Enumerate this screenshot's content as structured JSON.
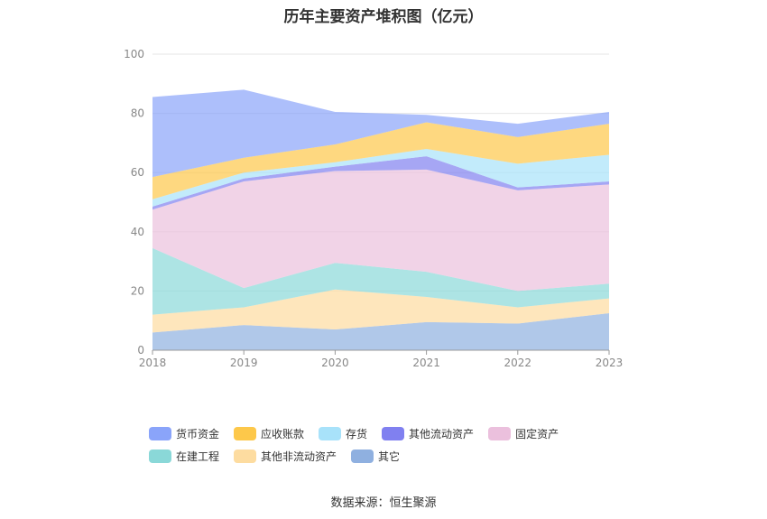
{
  "title": "历年主要资产堆积图（亿元）",
  "source": "数据来源：恒生聚源",
  "chart_data": {
    "type": "area",
    "stacked": true,
    "x": [
      "2018",
      "2019",
      "2020",
      "2021",
      "2022",
      "2023"
    ],
    "ylim": [
      0,
      100
    ],
    "yticks": [
      0,
      20,
      40,
      60,
      80,
      100
    ],
    "grid": true,
    "legend_position": "bottom",
    "series": [
      {
        "name": "其它",
        "color": "#8fb0e0",
        "values": [
          6,
          8.5,
          7,
          9.5,
          9,
          12.5
        ]
      },
      {
        "name": "其他非流动资产",
        "color": "#fddca0",
        "values": [
          6,
          6,
          13.5,
          8.5,
          5.5,
          5
        ]
      },
      {
        "name": "在建工程",
        "color": "#8ad8d8",
        "values": [
          22.5,
          6.5,
          9,
          8.5,
          5.5,
          5
        ]
      },
      {
        "name": "固定资产",
        "color": "#ebc0dd",
        "values": [
          13,
          36,
          31,
          34.5,
          34,
          33.5
        ]
      },
      {
        "name": "其他流动资产",
        "color": "#8080f0",
        "values": [
          1,
          1,
          1.5,
          4.5,
          1,
          1
        ]
      },
      {
        "name": "存货",
        "color": "#a8e2fa",
        "values": [
          2.5,
          2,
          1.5,
          2.5,
          8,
          9
        ]
      },
      {
        "name": "应收账款",
        "color": "#fdc84a",
        "values": [
          7.5,
          5,
          6,
          9,
          9,
          10.5
        ]
      },
      {
        "name": "货币资金",
        "color": "#8aa4fa",
        "values": [
          27,
          23,
          11,
          2.5,
          4.5,
          4
        ]
      }
    ],
    "legend_order": [
      "货币资金",
      "应收账款",
      "存货",
      "其他流动资产",
      "固定资产",
      "在建工程",
      "其他非流动资产",
      "其它"
    ]
  }
}
